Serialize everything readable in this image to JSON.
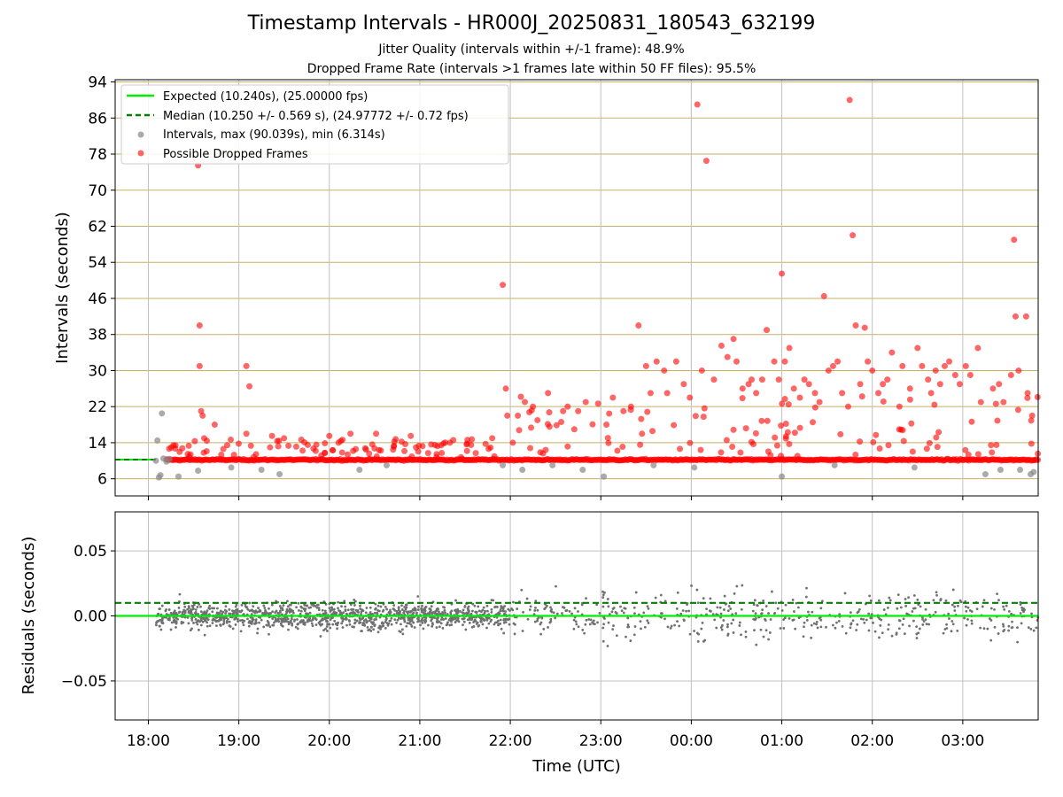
{
  "figure": {
    "title": "Timestamp Intervals - HR000J_20250831_180543_632199",
    "subtitle_1": "Jitter Quality (intervals within +/-1 frame): 48.9%",
    "subtitle_2": "Dropped Frame Rate (intervals >1 frames late within 50 FF files): 95.5%"
  },
  "colors": {
    "expected": "#00ee00",
    "median": "#007f00",
    "intervals": "#888888",
    "dropped": "#ff0000",
    "residuals": "#707070",
    "hgrid_top": "#c8b060",
    "grid": "#c0c0c0"
  },
  "chart_data": [
    {
      "type": "scatter",
      "ylabel": "Intervals (seconds)",
      "xlim": [
        "17:38",
        "03:50"
      ],
      "ylim": [
        2.2,
        94.5
      ],
      "x_ticks": [
        "18:00",
        "19:00",
        "20:00",
        "21:00",
        "22:00",
        "23:00",
        "00:00",
        "01:00",
        "02:00",
        "03:00"
      ],
      "y_ticks": [
        6,
        14,
        22,
        30,
        38,
        46,
        54,
        62,
        70,
        78,
        86,
        94
      ],
      "grid": "horizontal and vertical",
      "legend_position": "top-left",
      "legend": [
        "Expected (10.240s), (25.00000 fps)",
        "Median (10.250 +/- 0.569 s), (24.97772 +/- 0.72 fps)",
        "Intervals, max (90.039s), min (6.314s)",
        "Possible Dropped Frames"
      ],
      "expected_line": 10.24,
      "median_line": 10.25,
      "dropped_baseline": 10.2,
      "intervals_sample": [
        [
          "18:05",
          10.0
        ],
        [
          "18:06",
          14.5
        ],
        [
          "18:07",
          6.3
        ],
        [
          "18:08",
          6.8
        ],
        [
          "18:09",
          20.5
        ],
        [
          "18:10",
          10.5
        ],
        [
          "18:12",
          9.8
        ],
        [
          "18:14",
          10.4
        ],
        [
          "18:20",
          6.5
        ],
        [
          "18:33",
          7.8
        ],
        [
          "18:55",
          8.5
        ],
        [
          "19:15",
          8.0
        ],
        [
          "19:27",
          7.0
        ],
        [
          "20:20",
          8.0
        ],
        [
          "20:38",
          9.0
        ],
        [
          "21:55",
          9.0
        ],
        [
          "22:08",
          8.0
        ],
        [
          "22:28",
          9.0
        ],
        [
          "22:48",
          8.0
        ],
        [
          "23:02",
          6.5
        ],
        [
          "23:35",
          9.0
        ],
        [
          "00:02",
          8.5
        ],
        [
          "01:00",
          6.5
        ],
        [
          "01:35",
          9.0
        ],
        [
          "02:28",
          8.5
        ],
        [
          "03:15",
          7.0
        ],
        [
          "03:25",
          8.0
        ],
        [
          "03:38",
          8.0
        ],
        [
          "03:45",
          7.0
        ],
        [
          "03:47",
          7.5
        ]
      ],
      "dropped_sample": [
        [
          "18:33",
          75.5
        ],
        [
          "18:34",
          31.0
        ],
        [
          "18:34",
          40.0
        ],
        [
          "18:35",
          21.0
        ],
        [
          "18:36",
          20.0
        ],
        [
          "18:37",
          15.0
        ],
        [
          "18:44",
          18.0
        ],
        [
          "19:05",
          31.0
        ],
        [
          "19:07",
          26.5
        ],
        [
          "19:05",
          16.0
        ],
        [
          "19:22",
          15.5
        ],
        [
          "19:30",
          15.0
        ],
        [
          "20:00",
          15.5
        ],
        [
          "20:14",
          16.0
        ],
        [
          "20:31",
          16.0
        ],
        [
          "20:54",
          15.5
        ],
        [
          "21:20",
          14.0
        ],
        [
          "21:34",
          13.5
        ],
        [
          "21:48",
          15.0
        ],
        [
          "21:55",
          49.0
        ],
        [
          "21:57",
          26.0
        ],
        [
          "21:58",
          20.0
        ],
        [
          "22:05",
          20.0
        ],
        [
          "22:15",
          22.0
        ],
        [
          "22:18",
          19.0
        ],
        [
          "22:25",
          25.0
        ],
        [
          "22:35",
          21.0
        ],
        [
          "22:38",
          22.0
        ],
        [
          "22:45",
          21.0
        ],
        [
          "22:50",
          23.0
        ],
        [
          "23:08",
          24.0
        ],
        [
          "23:15",
          21.0
        ],
        [
          "23:20",
          22.0
        ],
        [
          "23:25",
          40.0
        ],
        [
          "23:30",
          31.0
        ],
        [
          "23:33",
          25.0
        ],
        [
          "23:37",
          32.0
        ],
        [
          "23:42",
          30.0
        ],
        [
          "23:44",
          25.0
        ],
        [
          "23:50",
          32.0
        ],
        [
          "23:55",
          27.0
        ],
        [
          "23:59",
          24.0
        ],
        [
          "00:04",
          89.0
        ],
        [
          "00:07",
          30.0
        ],
        [
          "00:10",
          76.5
        ],
        [
          "00:15",
          28.0
        ],
        [
          "00:20",
          35.5
        ],
        [
          "00:24",
          33.0
        ],
        [
          "00:28",
          37.0
        ],
        [
          "00:30",
          32.0
        ],
        [
          "00:34",
          26.0
        ],
        [
          "00:38",
          27.0
        ],
        [
          "00:40",
          28.0
        ],
        [
          "00:43",
          25.0
        ],
        [
          "00:47",
          28.0
        ],
        [
          "00:50",
          39.0
        ],
        [
          "00:55",
          32.0
        ],
        [
          "00:58",
          28.0
        ],
        [
          "01:00",
          51.5
        ],
        [
          "01:02",
          32.0
        ],
        [
          "01:05",
          35.0
        ],
        [
          "01:08",
          26.0
        ],
        [
          "01:12",
          24.0
        ],
        [
          "01:15",
          28.0
        ],
        [
          "01:18",
          27.0
        ],
        [
          "01:22",
          25.0
        ],
        [
          "01:25",
          23.0
        ],
        [
          "01:28",
          46.5
        ],
        [
          "01:31",
          30.0
        ],
        [
          "01:34",
          31.0
        ],
        [
          "01:37",
          32.0
        ],
        [
          "01:40",
          25.0
        ],
        [
          "01:44",
          22.0
        ],
        [
          "01:45",
          90.0
        ],
        [
          "01:47",
          60.0
        ],
        [
          "01:49",
          40.0
        ],
        [
          "01:52",
          27.0
        ],
        [
          "01:55",
          39.5
        ],
        [
          "01:57",
          32.0
        ],
        [
          "02:00",
          30.0
        ],
        [
          "02:04",
          25.0
        ],
        [
          "02:07",
          27.0
        ],
        [
          "02:10",
          28.0
        ],
        [
          "02:13",
          34.0
        ],
        [
          "02:18",
          22.0
        ],
        [
          "02:20",
          31.0
        ],
        [
          "02:25",
          26.0
        ],
        [
          "02:30",
          35.0
        ],
        [
          "02:33",
          31.0
        ],
        [
          "02:37",
          28.0
        ],
        [
          "02:39",
          25.0
        ],
        [
          "02:42",
          30.0
        ],
        [
          "02:45",
          27.0
        ],
        [
          "02:48",
          31.0
        ],
        [
          "02:51",
          32.0
        ],
        [
          "02:55",
          29.0
        ],
        [
          "02:58",
          27.0
        ],
        [
          "03:02",
          31.0
        ],
        [
          "03:05",
          29.0
        ],
        [
          "03:10",
          35.0
        ],
        [
          "03:12",
          23.0
        ],
        [
          "03:20",
          26.0
        ],
        [
          "03:24",
          27.0
        ],
        [
          "03:27",
          23.0
        ],
        [
          "03:32",
          29.0
        ],
        [
          "03:34",
          59.0
        ],
        [
          "03:35",
          42.0
        ],
        [
          "03:37",
          30.0
        ],
        [
          "03:42",
          42.0
        ],
        [
          "03:43",
          25.0
        ],
        [
          "03:46",
          20.0
        ]
      ]
    },
    {
      "type": "scatter",
      "xlabel": "Time (UTC)",
      "ylabel": "Residuals (seconds)",
      "xlim": [
        "17:38",
        "03:50"
      ],
      "ylim": [
        -0.08,
        0.08
      ],
      "x_ticks": [
        "18:00",
        "19:00",
        "20:00",
        "21:00",
        "22:00",
        "23:00",
        "00:00",
        "01:00",
        "02:00",
        "03:00"
      ],
      "y_ticks": [
        "0.05",
        "0.00",
        "−0.05"
      ],
      "grid": "horizontal and vertical",
      "expected_line": 0.0,
      "median_line": 0.01,
      "residuals_spread": [
        [
          "18:05",
          "19:00",
          0.02
        ],
        [
          "19:00",
          "20:00",
          0.022
        ],
        [
          "20:00",
          "21:00",
          0.022
        ],
        [
          "21:00",
          "22:00",
          0.02
        ],
        [
          "22:00",
          "23:00",
          0.03
        ],
        [
          "23:00",
          "00:20",
          0.04
        ],
        [
          "00:20",
          "01:40",
          0.04
        ],
        [
          "01:40",
          "03:50",
          0.035
        ]
      ]
    }
  ]
}
